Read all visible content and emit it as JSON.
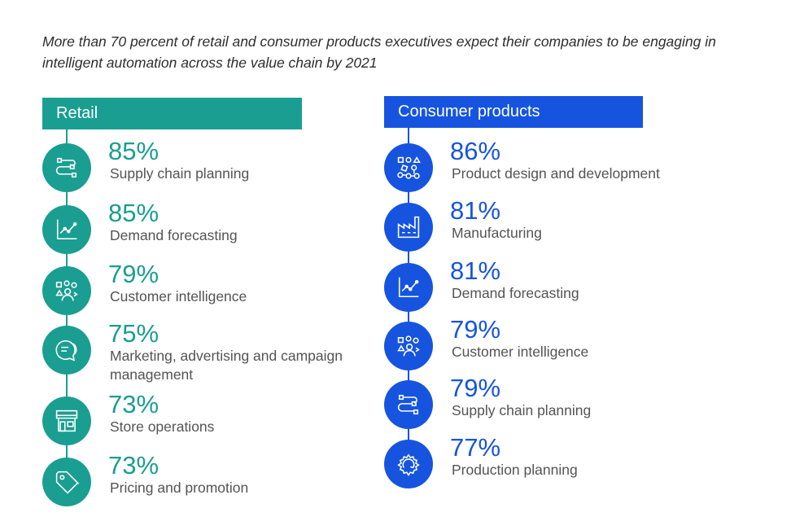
{
  "intro": "More than 70 percent of retail and consumer products executives expect their companies to be engaging in intelligent automation across the value chain by 2021",
  "colors": {
    "retail": "#1a9e91",
    "consumer_products": "#1654e0"
  },
  "retail": {
    "title": "Retail",
    "items": [
      {
        "percent": "85%",
        "label": "Supply chain planning",
        "icon": "supply-chain-icon"
      },
      {
        "percent": "85%",
        "label": "Demand forecasting",
        "icon": "chart-trend-icon"
      },
      {
        "percent": "79%",
        "label": "Customer intelligence",
        "icon": "customer-icon"
      },
      {
        "percent": "75%",
        "label": "Marketing, advertising and campaign management",
        "icon": "speech-bubble-icon"
      },
      {
        "percent": "73%",
        "label": "Store operations",
        "icon": "storefront-icon"
      },
      {
        "percent": "73%",
        "label": "Pricing and promotion",
        "icon": "price-tag-icon"
      }
    ]
  },
  "consumer_products": {
    "title": "Consumer products",
    "items": [
      {
        "percent": "86%",
        "label": "Product design and development",
        "icon": "design-shapes-icon"
      },
      {
        "percent": "81%",
        "label": "Manufacturing",
        "icon": "factory-icon"
      },
      {
        "percent": "81%",
        "label": "Demand forecasting",
        "icon": "chart-trend-icon"
      },
      {
        "percent": "79%",
        "label": "Customer intelligence",
        "icon": "customer-icon"
      },
      {
        "percent": "79%",
        "label": "Supply chain planning",
        "icon": "supply-chain-icon"
      },
      {
        "percent": "77%",
        "label": "Production planning",
        "icon": "gear-cycle-icon"
      }
    ]
  },
  "chart_data": {
    "type": "table",
    "series": [
      {
        "name": "Retail",
        "categories": [
          "Supply chain planning",
          "Demand forecasting",
          "Customer intelligence",
          "Marketing, advertising and campaign management",
          "Store operations",
          "Pricing and promotion"
        ],
        "values": [
          85,
          85,
          79,
          75,
          73,
          73
        ]
      },
      {
        "name": "Consumer products",
        "categories": [
          "Product design and development",
          "Manufacturing",
          "Demand forecasting",
          "Customer intelligence",
          "Supply chain planning",
          "Production planning"
        ],
        "values": [
          86,
          81,
          81,
          79,
          79,
          77
        ]
      }
    ]
  }
}
